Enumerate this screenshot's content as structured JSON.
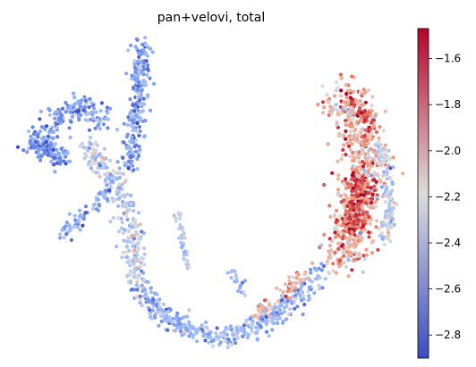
{
  "chart_data": {
    "type": "scatter",
    "title": "pan+velovi, total",
    "xlabel": "",
    "ylabel": "",
    "axes_visible": false,
    "grid": false,
    "legend": "none",
    "colormap": "coolwarm",
    "colors": {
      "low": "#3b4cc0",
      "mid": "#dddddd",
      "high": "#b40426"
    },
    "colorbar": {
      "placement": "right",
      "range": [
        -2.9,
        -1.47
      ],
      "ticks": [
        -2.8,
        -2.6,
        -2.4,
        -2.2,
        -2.0,
        -1.8,
        -1.6
      ],
      "tick_labels": [
        "−2.8",
        "−2.6",
        "−2.4",
        "−2.2",
        "−2.0",
        "−1.8",
        "−1.6"
      ]
    },
    "clusters": [
      {
        "part": "left-arm",
        "path": [
          [
            38,
            160
          ],
          [
            55,
            150
          ],
          [
            75,
            128
          ],
          [
            95,
            118
          ],
          [
            110,
            125
          ],
          [
            115,
            140
          ]
        ],
        "width": 16,
        "count": 170,
        "value": [
          -2.62,
          0.16
        ]
      },
      {
        "part": "left-blob",
        "path": [
          [
            32,
            165
          ],
          [
            45,
            162
          ],
          [
            60,
            172
          ],
          [
            72,
            180
          ]
        ],
        "width": 12,
        "count": 110,
        "value": [
          -2.68,
          0.12
        ]
      },
      {
        "part": "upper-spike",
        "path": [
          [
            157,
            50
          ],
          [
            158,
            75
          ],
          [
            156,
            100
          ],
          [
            152,
            130
          ],
          [
            148,
            160
          ],
          [
            145,
            190
          ]
        ],
        "width": 12,
        "count": 240,
        "value": [
          -2.58,
          0.16
        ]
      },
      {
        "part": "mid-stem",
        "path": [
          [
            95,
            165
          ],
          [
            115,
            185
          ],
          [
            130,
            205
          ],
          [
            140,
            235
          ],
          [
            148,
            265
          ],
          [
            152,
            300
          ],
          [
            160,
            330
          ]
        ],
        "width": 15,
        "count": 280,
        "value": [
          -2.34,
          0.18
        ]
      },
      {
        "part": "lower-left-arm",
        "path": [
          [
            70,
            262
          ],
          [
            85,
            248
          ],
          [
            98,
            238
          ],
          [
            112,
            222
          ],
          [
            122,
            212
          ]
        ],
        "width": 9,
        "count": 75,
        "value": [
          -2.55,
          0.14
        ]
      },
      {
        "part": "small-stem",
        "path": [
          [
            198,
            238
          ],
          [
            203,
            258
          ],
          [
            205,
            280
          ],
          [
            210,
            300
          ]
        ],
        "width": 6,
        "count": 40,
        "value": [
          -2.36,
          0.12
        ]
      },
      {
        "part": "small-stem-right",
        "path": [
          [
            258,
            302
          ],
          [
            265,
            316
          ],
          [
            270,
            330
          ]
        ],
        "width": 6,
        "count": 18,
        "value": [
          -2.46,
          0.1
        ]
      },
      {
        "part": "bottom-curve",
        "path": [
          [
            160,
            330
          ],
          [
            185,
            355
          ],
          [
            215,
            370
          ],
          [
            245,
            378
          ],
          [
            275,
            372
          ],
          [
            305,
            352
          ],
          [
            335,
            330
          ],
          [
            360,
            305
          ]
        ],
        "width": 14,
        "count": 380,
        "value": [
          -2.5,
          0.16
        ]
      },
      {
        "part": "bottom-warm-segment",
        "path": [
          [
            285,
            350
          ],
          [
            305,
            340
          ],
          [
            322,
            322
          ],
          [
            340,
            305
          ]
        ],
        "width": 9,
        "count": 60,
        "value": [
          -1.92,
          0.16
        ]
      },
      {
        "part": "right-lobe",
        "path": [
          [
            378,
            108
          ],
          [
            392,
            120
          ],
          [
            403,
            150
          ],
          [
            408,
            180
          ],
          [
            406,
            210
          ],
          [
            400,
            240
          ],
          [
            393,
            272
          ],
          [
            376,
            295
          ]
        ],
        "width": 28,
        "count": 700,
        "value": [
          -1.95,
          0.22
        ]
      },
      {
        "part": "right-lobe-core",
        "path": [
          [
            398,
            200
          ],
          [
            402,
            220
          ],
          [
            395,
            245
          ],
          [
            385,
            260
          ]
        ],
        "width": 16,
        "count": 140,
        "value": [
          -1.62,
          0.1
        ]
      },
      {
        "part": "right-lobe-top",
        "path": [
          [
            398,
            118
          ],
          [
            410,
            130
          ],
          [
            414,
            145
          ]
        ],
        "width": 8,
        "count": 45,
        "value": [
          -1.66,
          0.1
        ]
      },
      {
        "part": "right-lobe-edge",
        "path": [
          [
            425,
            160
          ],
          [
            432,
            200
          ],
          [
            436,
            240
          ],
          [
            430,
            270
          ]
        ],
        "width": 8,
        "count": 110,
        "value": [
          -2.3,
          0.14
        ]
      }
    ]
  }
}
